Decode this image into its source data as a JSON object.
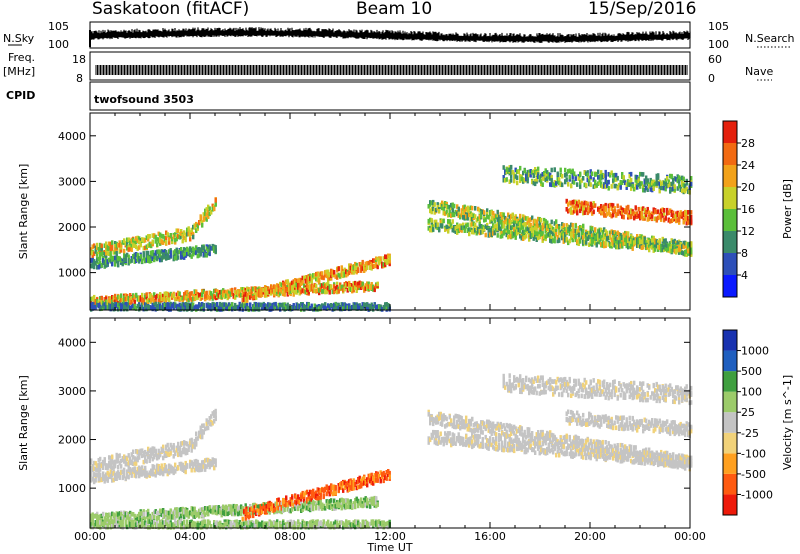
{
  "header": {
    "site": "Saskatoon (fitACF)",
    "beam": "Beam 10",
    "date": "15/Sep/2016"
  },
  "side_labels": {
    "nsky": "N.Sky",
    "freq": "Freq.",
    "mhz": "[MHz]",
    "cpid": "CPID",
    "nsearch": "N.Search",
    "nave": "Nave"
  },
  "noise_panel": {
    "left_ticks": [
      "10^5",
      "10^0"
    ],
    "right_ticks": [
      "10^5",
      "10^0"
    ]
  },
  "freq_panel": {
    "left_ticks": [
      "18",
      "8"
    ],
    "right_ticks": [
      "60",
      "0"
    ]
  },
  "cpid_text": "twofsound 3503",
  "colors": {
    "power_scale": [
      "#0a1aff",
      "#2d4fb8",
      "#3a8a6a",
      "#5bbf3a",
      "#c8d12a",
      "#f2a21a",
      "#f26a12",
      "#e4200c"
    ],
    "velocity_scale": [
      "#ee1a0a",
      "#ff5a10",
      "#ffa020",
      "#f1d27a",
      "#c4c4c4",
      "#9ccb6a",
      "#3f9f3f",
      "#1f5fbf",
      "#1832b0"
    ],
    "ground_scatter": "#c4c4c4"
  },
  "chart_data": [
    {
      "type": "heatmap",
      "title": "Power",
      "xlabel": "",
      "ylabel": "Slant Range [km]",
      "x_ticks": [
        "00:00",
        "04:00",
        "08:00",
        "12:00",
        "16:00",
        "20:00",
        "00:00"
      ],
      "y_ticks": [
        "1000",
        "2000",
        "3000",
        "4000"
      ],
      "ylim": [
        180,
        4500
      ],
      "colorbar": {
        "label": "Power [dB]",
        "ticks": [
          "4",
          "8",
          "12",
          "16",
          "20",
          "24",
          "28"
        ],
        "range": [
          0,
          30
        ]
      }
    },
    {
      "type": "heatmap",
      "title": "Velocity",
      "xlabel": "Time UT",
      "ylabel": "Slant Range [km]",
      "x_ticks": [
        "00:00",
        "04:00",
        "08:00",
        "12:00",
        "16:00",
        "20:00",
        "00:00"
      ],
      "y_ticks": [
        "1000",
        "2000",
        "3000",
        "4000"
      ],
      "ylim": [
        180,
        4500
      ],
      "colorbar": {
        "label": "Velocity [m s^-1]",
        "ticks": [
          "1000",
          "500",
          "100",
          "25",
          "-25",
          "-100",
          "-500",
          "-1000"
        ],
        "range": [
          -1000,
          1000
        ]
      }
    }
  ]
}
